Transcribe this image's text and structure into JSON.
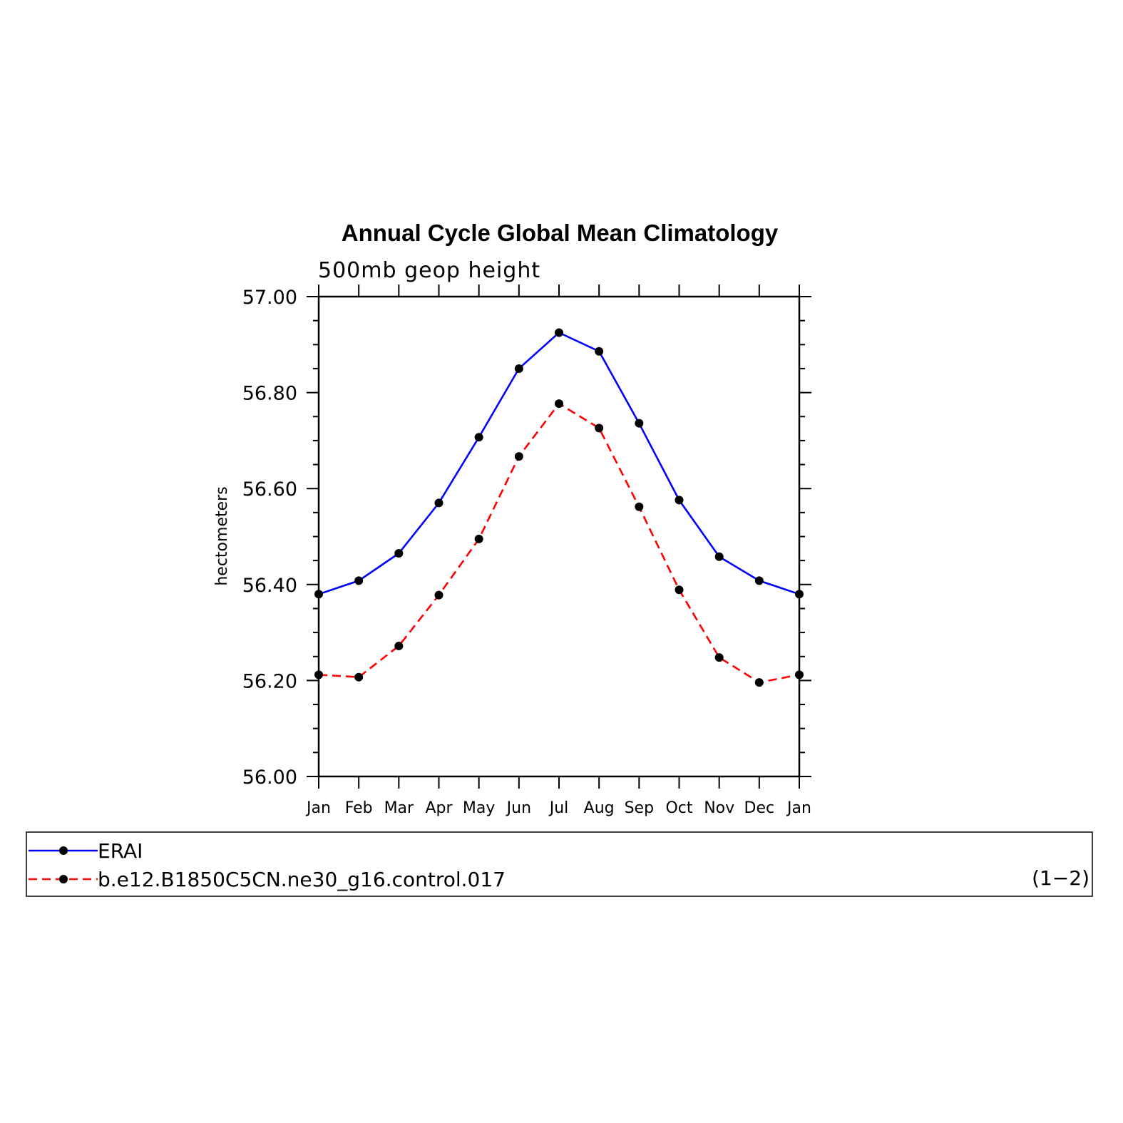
{
  "chart_data": {
    "type": "line",
    "title": "Annual Cycle Global Mean Climatology",
    "subtitle": "500mb geop height",
    "xlabel": "",
    "ylabel": "hectometers",
    "categories": [
      "Jan",
      "Feb",
      "Mar",
      "Apr",
      "May",
      "Jun",
      "Jul",
      "Aug",
      "Sep",
      "Oct",
      "Nov",
      "Dec",
      "Jan"
    ],
    "ylim": [
      56.0,
      57.0
    ],
    "yticks": [
      "57.00",
      "56.80",
      "56.60",
      "56.40",
      "56.20",
      "56.00"
    ],
    "ytick_values": [
      57.0,
      56.8,
      56.6,
      56.4,
      56.2,
      56.0
    ],
    "grid": false,
    "legend_placement": "bottom",
    "series": [
      {
        "name": "ERAI",
        "color": "#0000ff",
        "line_style": "solid",
        "values": [
          56.38,
          56.408,
          56.465,
          56.57,
          56.707,
          56.85,
          56.925,
          56.886,
          56.736,
          56.576,
          56.458,
          56.408,
          56.38
        ]
      },
      {
        "name": "b.e12.B1850C5CN.ne30_g16.control.017",
        "color": "#ff0000",
        "line_style": "dashed",
        "values": [
          56.212,
          56.207,
          56.272,
          56.378,
          56.495,
          56.667,
          56.777,
          56.726,
          56.562,
          56.389,
          56.248,
          56.196,
          56.212
        ]
      }
    ],
    "legend_note": "(1−2)"
  }
}
